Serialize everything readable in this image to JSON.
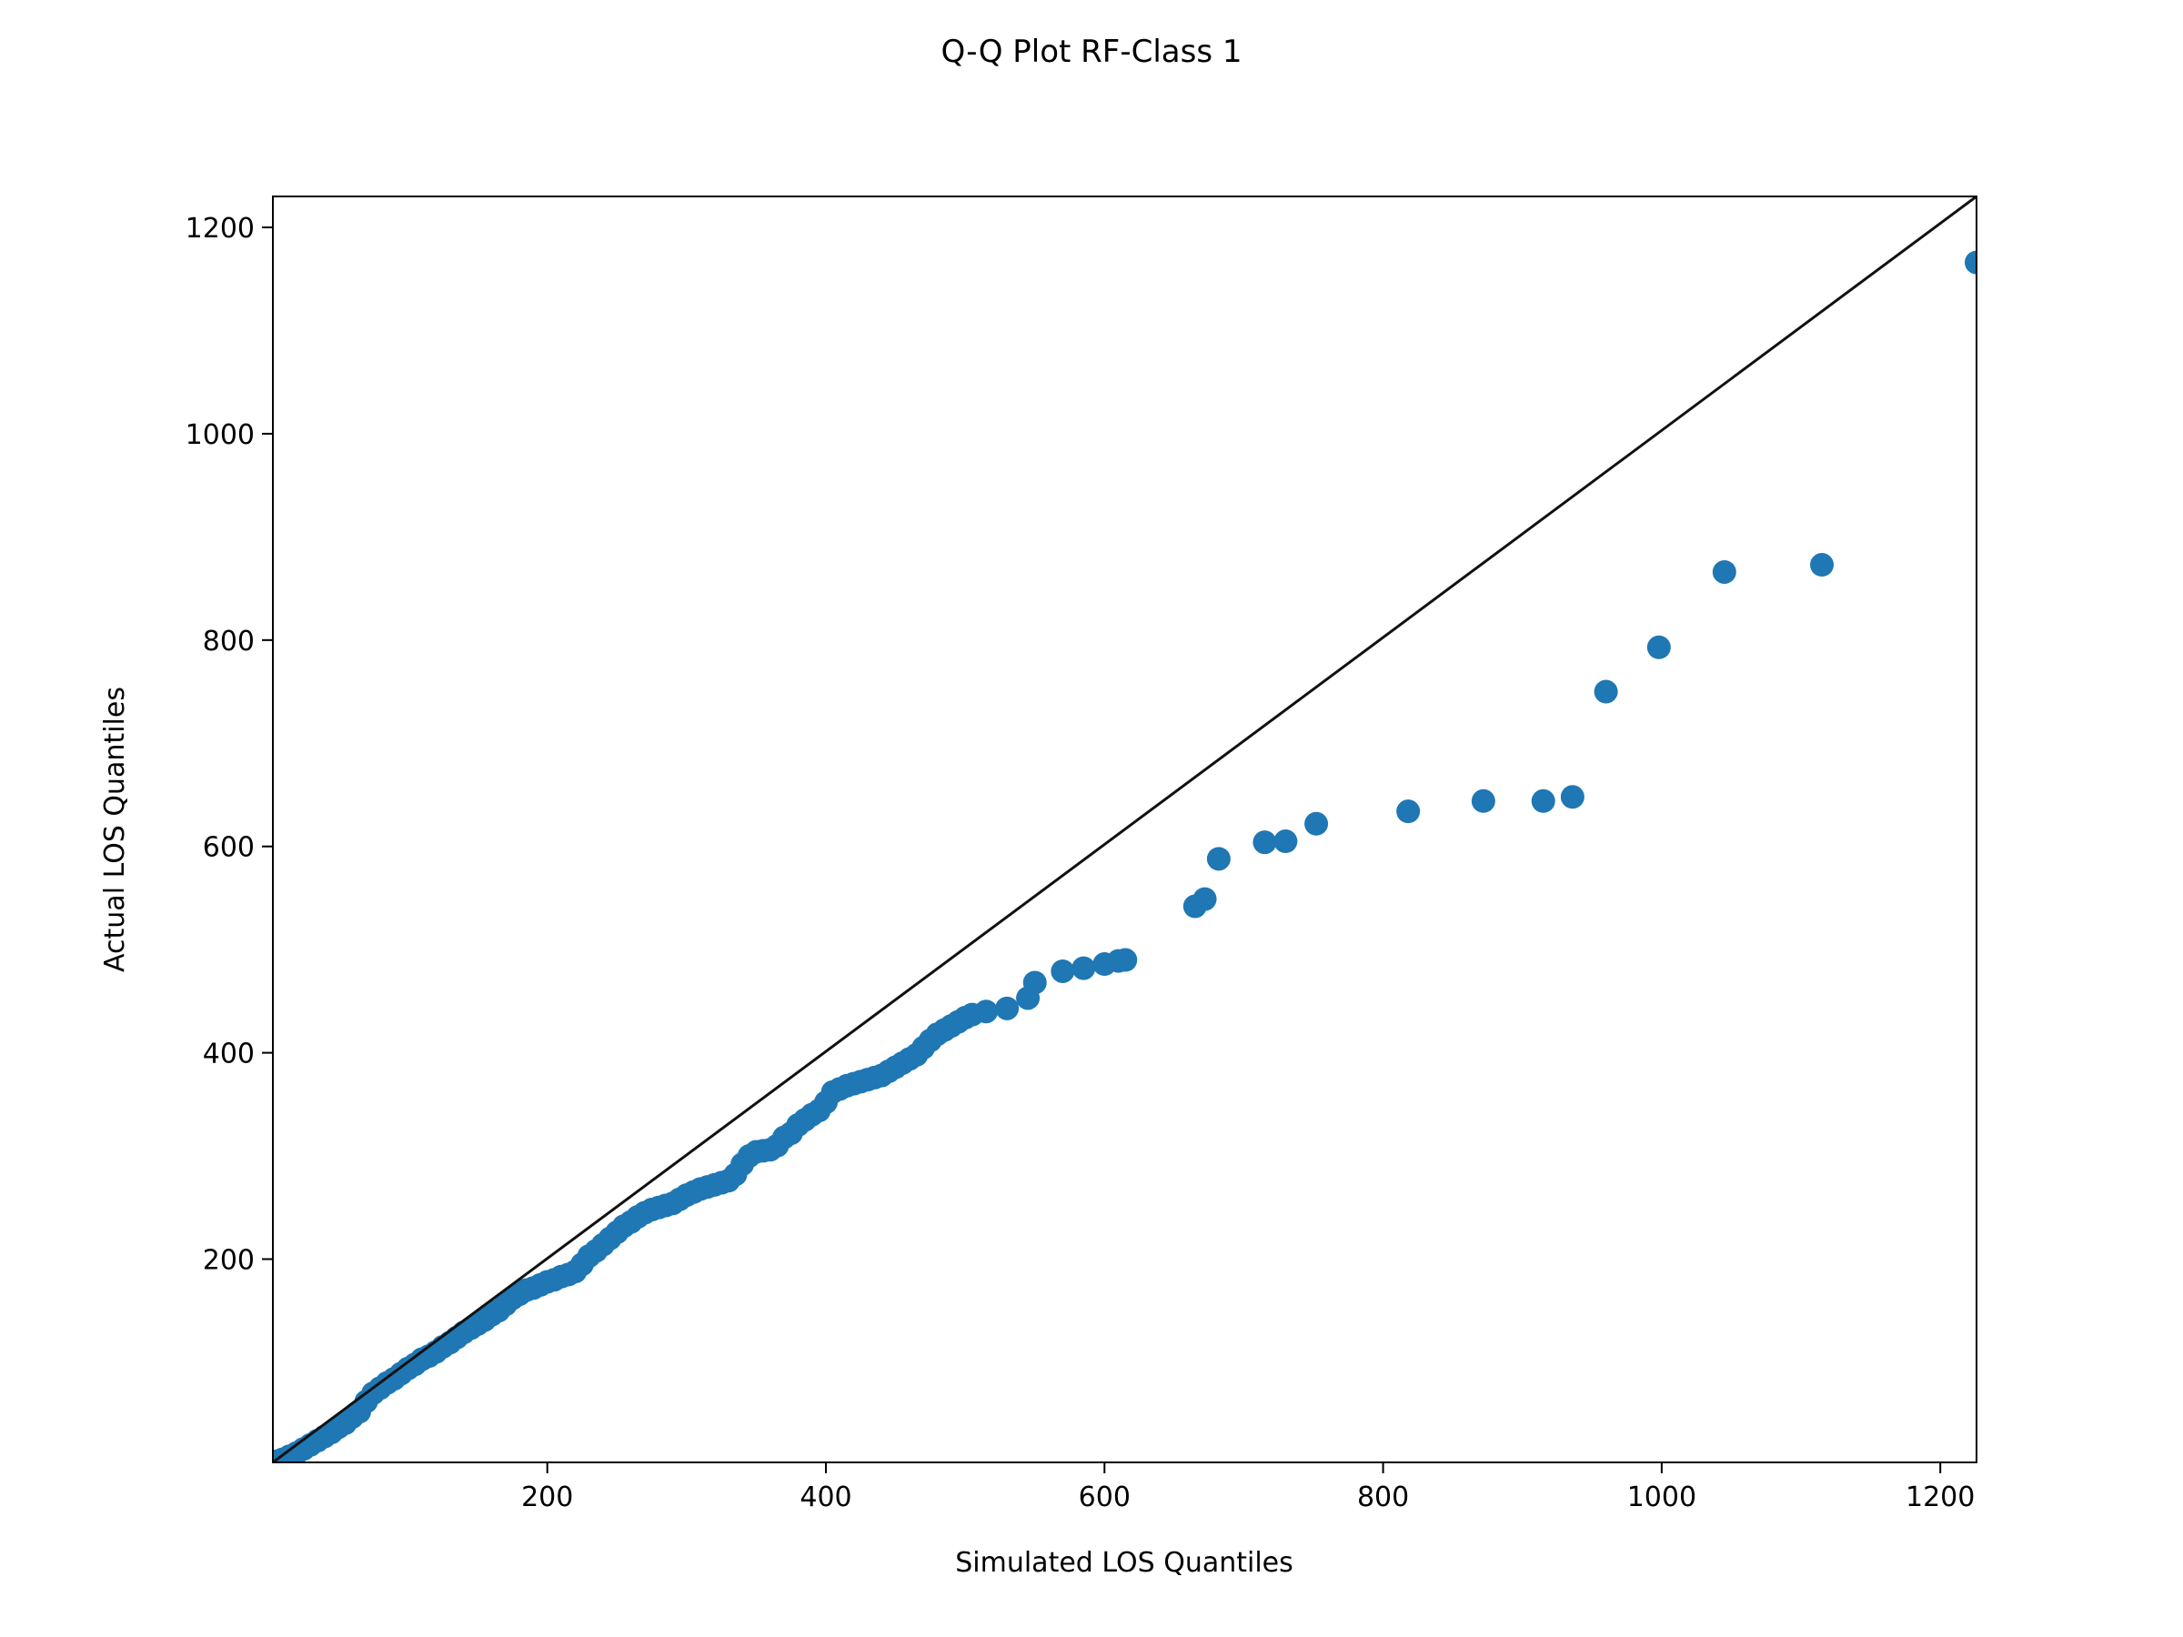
{
  "chart_data": {
    "type": "scatter",
    "title": "Q-Q Plot RF-Class 1",
    "xlabel": "Simulated LOS Quantiles",
    "ylabel": "Actual LOS Quantiles",
    "xlim": [
      3,
      1226
    ],
    "ylim": [
      3,
      1230
    ],
    "x_ticks": [
      200,
      400,
      600,
      800,
      1000,
      1200
    ],
    "y_ticks": [
      200,
      400,
      600,
      800,
      1000,
      1200
    ],
    "grid": false,
    "reference_line": {
      "from": [
        3,
        3
      ],
      "to": [
        1226,
        1230
      ],
      "color": "#111111"
    },
    "series": [
      {
        "color": "#1f77b4",
        "points": [
          [
            5,
            4
          ],
          [
            10,
            6
          ],
          [
            15,
            9
          ],
          [
            20,
            12
          ],
          [
            25,
            16
          ],
          [
            30,
            20
          ],
          [
            35,
            24
          ],
          [
            40,
            28
          ],
          [
            45,
            32
          ],
          [
            50,
            37
          ],
          [
            55,
            41
          ],
          [
            60,
            47
          ],
          [
            65,
            52
          ],
          [
            70,
            62
          ],
          [
            75,
            70
          ],
          [
            80,
            75
          ],
          [
            85,
            80
          ],
          [
            90,
            84
          ],
          [
            95,
            89
          ],
          [
            100,
            94
          ],
          [
            105,
            98
          ],
          [
            110,
            103
          ],
          [
            115,
            106
          ],
          [
            120,
            110
          ],
          [
            125,
            115
          ],
          [
            130,
            119
          ],
          [
            135,
            124
          ],
          [
            140,
            129
          ],
          [
            145,
            133
          ],
          [
            150,
            137
          ],
          [
            155,
            141
          ],
          [
            160,
            146
          ],
          [
            165,
            150
          ],
          [
            170,
            156
          ],
          [
            175,
            162
          ],
          [
            180,
            166
          ],
          [
            185,
            170
          ],
          [
            190,
            172
          ],
          [
            195,
            175
          ],
          [
            200,
            178
          ],
          [
            205,
            180
          ],
          [
            210,
            183
          ],
          [
            215,
            185
          ],
          [
            220,
            188
          ],
          [
            225,
            195
          ],
          [
            230,
            203
          ],
          [
            235,
            208
          ],
          [
            240,
            214
          ],
          [
            245,
            220
          ],
          [
            250,
            226
          ],
          [
            255,
            232
          ],
          [
            260,
            236
          ],
          [
            265,
            241
          ],
          [
            270,
            245
          ],
          [
            275,
            248
          ],
          [
            280,
            250
          ],
          [
            285,
            252
          ],
          [
            290,
            254
          ],
          [
            295,
            258
          ],
          [
            300,
            262
          ],
          [
            305,
            265
          ],
          [
            310,
            268
          ],
          [
            315,
            270
          ],
          [
            320,
            272
          ],
          [
            325,
            274
          ],
          [
            330,
            276
          ],
          [
            335,
            282
          ],
          [
            340,
            292
          ],
          [
            345,
            300
          ],
          [
            350,
            304
          ],
          [
            355,
            305
          ],
          [
            360,
            306
          ],
          [
            365,
            310
          ],
          [
            370,
            318
          ],
          [
            375,
            322
          ],
          [
            380,
            330
          ],
          [
            385,
            335
          ],
          [
            390,
            340
          ],
          [
            395,
            344
          ],
          [
            400,
            352
          ],
          [
            405,
            362
          ],
          [
            410,
            365
          ],
          [
            415,
            368
          ],
          [
            420,
            370
          ],
          [
            425,
            372
          ],
          [
            430,
            374
          ],
          [
            435,
            376
          ],
          [
            440,
            378
          ],
          [
            445,
            382
          ],
          [
            450,
            386
          ],
          [
            455,
            390
          ],
          [
            460,
            394
          ],
          [
            465,
            398
          ],
          [
            470,
            405
          ],
          [
            475,
            412
          ],
          [
            480,
            418
          ],
          [
            485,
            422
          ],
          [
            490,
            426
          ],
          [
            495,
            430
          ],
          [
            500,
            434
          ],
          [
            505,
            437
          ],
          [
            515,
            440
          ],
          [
            530,
            443
          ],
          [
            545,
            453
          ],
          [
            550,
            468
          ],
          [
            570,
            479
          ],
          [
            585,
            482
          ],
          [
            600,
            486
          ],
          [
            610,
            489
          ],
          [
            615,
            490
          ],
          [
            665,
            542
          ],
          [
            672,
            549
          ],
          [
            682,
            588
          ],
          [
            715,
            604
          ],
          [
            730,
            605
          ],
          [
            752,
            622
          ],
          [
            818,
            634
          ],
          [
            872,
            644
          ],
          [
            915,
            644
          ],
          [
            936,
            648
          ],
          [
            960,
            750
          ],
          [
            998,
            793
          ],
          [
            1045,
            866
          ],
          [
            1115,
            873
          ],
          [
            1226,
            1166
          ]
        ]
      }
    ]
  }
}
